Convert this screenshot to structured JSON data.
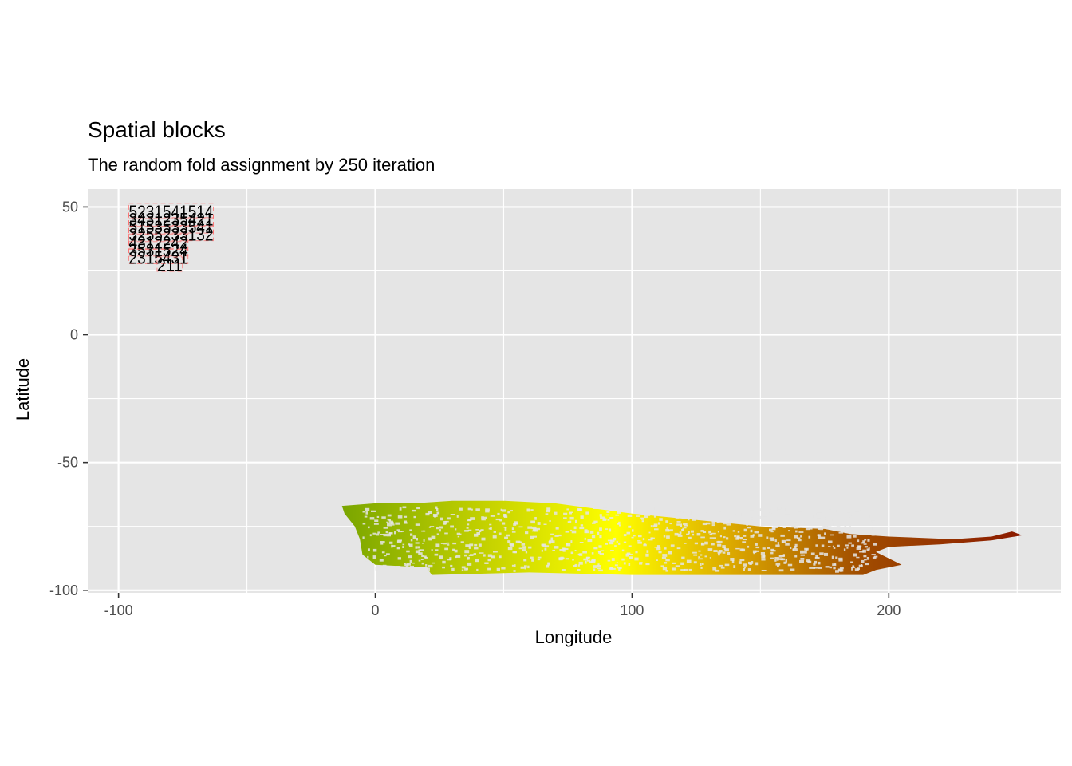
{
  "chart_data": {
    "type": "scatter",
    "title": "Spatial blocks",
    "subtitle": "The random fold assignment by 250 iteration",
    "xlabel": "Longitude",
    "ylabel": "Latitude",
    "xlim": [
      -112,
      267
    ],
    "ylim": [
      -101,
      57
    ],
    "x_ticks": [
      -100,
      0,
      100,
      200
    ],
    "y_ticks": [
      50,
      0,
      -50,
      -100
    ],
    "grid": true,
    "background": "#e5e5e5",
    "grid_color": "#ffffff",
    "raster_gradient": [
      "#7ba600",
      "#c8d400",
      "#ffff00",
      "#d9a400",
      "#a14d00",
      "#8b1a00"
    ],
    "raster_extent": {
      "x": [
        -12,
        252
      ],
      "y": [
        -93,
        -65
      ]
    },
    "fold_labels": [
      {
        "x": -96,
        "y": 48,
        "text": "5231541514"
      },
      {
        "x": -96,
        "y": 45,
        "text": "3431235421"
      },
      {
        "x": -96,
        "y": 42,
        "text": "5153533541"
      },
      {
        "x": -96,
        "y": 39,
        "text": "3255233132"
      },
      {
        "x": -96,
        "y": 36,
        "text": "4312242"
      },
      {
        "x": -96,
        "y": 33,
        "text": "3531524"
      },
      {
        "x": -96,
        "y": 30,
        "text": "2315431"
      },
      {
        "x": -85,
        "y": 27,
        "text": "211"
      }
    ]
  }
}
